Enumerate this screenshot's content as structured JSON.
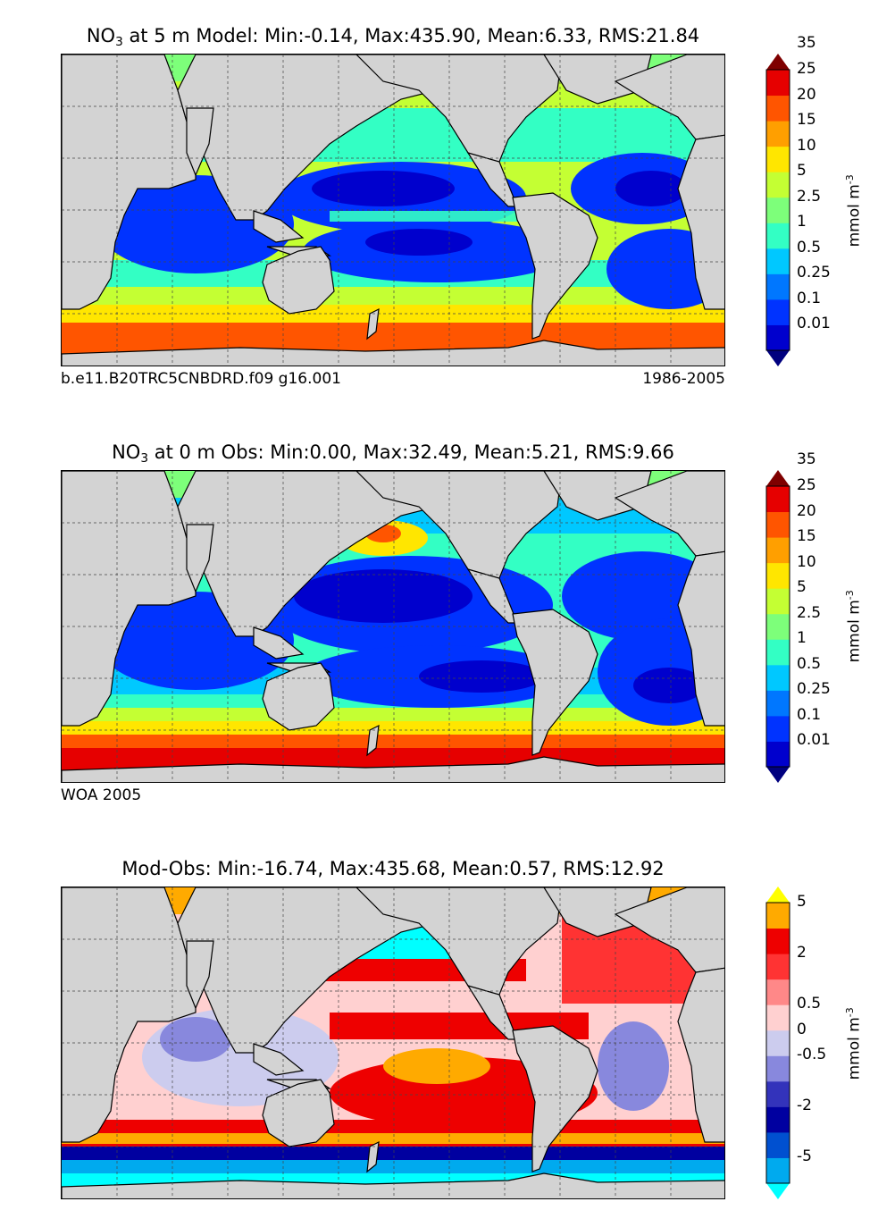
{
  "panels": [
    {
      "id": "model",
      "title_prefix": "NO",
      "title_sub": "3",
      "title_rest": "at 5 m Model: Min:-0.14, Max:435.90, Mean:6.33, RMS:21.84",
      "footer_left": "b.e11.B20TRC5CNBDRD.f09 g16.001",
      "footer_right": "1986-2005",
      "unit": "mmol m",
      "unit_exp": "-3",
      "colorbar": {
        "labels": [
          "0.01",
          "0.1",
          "0.25",
          "0.5",
          "1",
          "2.5",
          "5",
          "10",
          "15",
          "20",
          "25",
          "35"
        ],
        "colors": [
          "#00007f",
          "#0000cd",
          "#0033ff",
          "#0077ff",
          "#00c8ff",
          "#33ffc4",
          "#7dff7a",
          "#c4ff33",
          "#ffe600",
          "#ff9f00",
          "#ff5500",
          "#e60000",
          "#7f0000"
        ]
      }
    },
    {
      "id": "obs",
      "title_prefix": "NO",
      "title_sub": "3",
      "title_rest": "at 0 m Obs: Min:0.00, Max:32.49, Mean:5.21, RMS:9.66",
      "footer_left": "WOA 2005",
      "footer_right": "",
      "unit": "mmol m",
      "unit_exp": "-3",
      "colorbar": {
        "labels": [
          "0.01",
          "0.1",
          "0.25",
          "0.5",
          "1",
          "2.5",
          "5",
          "10",
          "15",
          "20",
          "25",
          "35"
        ],
        "colors": [
          "#00007f",
          "#0000cd",
          "#0033ff",
          "#0077ff",
          "#00c8ff",
          "#33ffc4",
          "#7dff7a",
          "#c4ff33",
          "#ffe600",
          "#ff9f00",
          "#ff5500",
          "#e60000",
          "#7f0000"
        ]
      }
    },
    {
      "id": "diff",
      "title_prefix": "",
      "title_sub": "",
      "title_rest": "Mod-Obs: Min:-16.74, Max:435.68, Mean:0.57, RMS:12.92",
      "footer_left": "",
      "footer_right": "",
      "unit": "mmol m",
      "unit_exp": "-3",
      "colorbar": {
        "labels": [
          "-5",
          "-2",
          "-0.5",
          "0",
          "0.5",
          "2",
          "5"
        ],
        "colors": [
          "#00ffff",
          "#00aaee",
          "#0050d0",
          "#0000a0",
          "#3333bb",
          "#8888dd",
          "#ccccee",
          "#ffd0d0",
          "#ff8888",
          "#ff3333",
          "#ee0000",
          "#ffaa00",
          "#ffff00"
        ],
        "label_steps": [
          1,
          3,
          5,
          6,
          7,
          9,
          11
        ]
      }
    }
  ],
  "chart_data": [
    {
      "type": "heatmap",
      "title": "NO3 at 5 m Model: Min:-0.14, Max:435.90, Mean:6.33, RMS:21.84",
      "variable": "Nitrate (NO3)",
      "depth": "5 m",
      "source": "b.e11.B20TRC5CNBDRD.f09 g16.001",
      "period": "1986-2005",
      "stats": {
        "min": -0.14,
        "max": 435.9,
        "mean": 6.33,
        "rms": 21.84
      },
      "colorbar_levels": [
        0.01,
        0.1,
        0.25,
        0.5,
        1,
        2.5,
        5,
        10,
        15,
        20,
        25,
        35
      ],
      "colorbar_extend": "both",
      "units": "mmol m^-3",
      "xlim": [
        30,
        390
      ],
      "ylim": [
        -80,
        90
      ]
    },
    {
      "type": "heatmap",
      "title": "NO3 at 0 m Obs: Min:0.00, Max:32.49, Mean:5.21, RMS:9.66",
      "variable": "Nitrate (NO3)",
      "depth": "0 m",
      "source": "WOA 2005",
      "stats": {
        "min": 0.0,
        "max": 32.49,
        "mean": 5.21,
        "rms": 9.66
      },
      "colorbar_levels": [
        0.01,
        0.1,
        0.25,
        0.5,
        1,
        2.5,
        5,
        10,
        15,
        20,
        25,
        35
      ],
      "colorbar_extend": "both",
      "units": "mmol m^-3",
      "xlim": [
        30,
        390
      ],
      "ylim": [
        -80,
        90
      ]
    },
    {
      "type": "heatmap",
      "title": "Mod-Obs: Min:-16.74, Max:435.68, Mean:0.57, RMS:12.92",
      "variable": "Nitrate difference (Model - Obs)",
      "stats": {
        "min": -16.74,
        "max": 435.68,
        "mean": 0.57,
        "rms": 12.92
      },
      "colorbar_levels": [
        -5,
        -2,
        -0.5,
        0,
        0.5,
        2,
        5
      ],
      "colorbar_extend": "both",
      "units": "mmol m^-3",
      "xlim": [
        30,
        390
      ],
      "ylim": [
        -80,
        90
      ]
    }
  ]
}
